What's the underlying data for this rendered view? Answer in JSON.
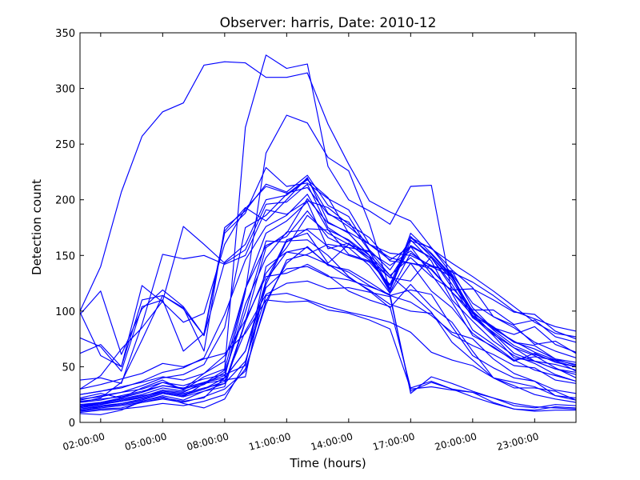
{
  "chart_data": {
    "type": "line",
    "title": "Observer: harris, Date: 2010-12",
    "xlabel": "Time (hours)",
    "ylabel": "Detection count",
    "x_ticks": [
      "02:00:00",
      "05:00:00",
      "08:00:00",
      "11:00:00",
      "14:00:00",
      "17:00:00",
      "20:00:00",
      "23:00:00"
    ],
    "y_ticks": [
      0,
      50,
      100,
      150,
      200,
      250,
      300,
      350
    ],
    "xlim_hours": [
      1,
      25
    ],
    "ylim": [
      0,
      350
    ],
    "grid": false,
    "line_color": "#0000ff",
    "x_hours": [
      1,
      2,
      3,
      4,
      5,
      6,
      7,
      8,
      9,
      10,
      11,
      12,
      13,
      14,
      15,
      16,
      17,
      18,
      19,
      20,
      21,
      22,
      23,
      24,
      25
    ],
    "series": [
      {
        "values": [
          100,
          140,
          207,
          257,
          279,
          287,
          321,
          324,
          323,
          310,
          310,
          314,
          268,
          232,
          199,
          189,
          181,
          157,
          137,
          121,
          95,
          87,
          70,
          73,
          62
        ]
      },
      {
        "values": [
          22,
          26,
          22,
          31,
          38,
          29,
          41,
          48,
          265,
          330,
          318,
          322,
          230,
          200,
          190,
          178,
          212,
          213,
          116,
          83,
          70,
          56,
          59,
          56,
          46
        ]
      },
      {
        "values": [
          15,
          18,
          21,
          24,
          27,
          25,
          30,
          40,
          117,
          242,
          276,
          269,
          238,
          226,
          179,
          119,
          170,
          152,
          132,
          98,
          86,
          72,
          66,
          57,
          54
        ]
      },
      {
        "values": [
          97,
          118,
          61,
          102,
          119,
          104,
          78,
          170,
          188,
          229,
          212,
          215,
          201,
          191,
          160,
          146,
          158,
          133,
          108,
          78,
          68,
          55,
          62,
          54,
          50
        ]
      },
      {
        "values": [
          62,
          70,
          50,
          110,
          114,
          103,
          64,
          175,
          190,
          214,
          207,
          222,
          195,
          185,
          155,
          137,
          164,
          145,
          110,
          91,
          73,
          60,
          53,
          43,
          37
        ]
      },
      {
        "values": [
          76,
          68,
          46,
          104,
          110,
          64,
          80,
          172,
          193,
          181,
          200,
          220,
          180,
          170,
          150,
          120,
          166,
          151,
          131,
          95,
          78,
          58,
          55,
          52,
          47
        ]
      },
      {
        "values": [
          99,
          60,
          50,
          123,
          108,
          90,
          98,
          160,
          192,
          212,
          206,
          211,
          187,
          180,
          154,
          120,
          167,
          149,
          128,
          96,
          80,
          62,
          55,
          48,
          43
        ]
      },
      {
        "values": [
          30,
          42,
          66,
          85,
          109,
          176,
          160,
          143,
          155,
          196,
          198,
          214,
          175,
          163,
          148,
          130,
          159,
          148,
          124,
          94,
          81,
          67,
          60,
          49,
          40
        ]
      },
      {
        "values": [
          18,
          22,
          36,
          74,
          114,
          102,
          78,
          144,
          160,
          200,
          204,
          218,
          202,
          170,
          150,
          117,
          152,
          140,
          131,
          98,
          79,
          67,
          55,
          48,
          45
        ]
      },
      {
        "values": [
          38,
          40,
          35,
          88,
          151,
          147,
          150,
          142,
          150,
          191,
          187,
          199,
          193,
          178,
          166,
          145,
          143,
          140,
          136,
          103,
          84,
          73,
          63,
          56,
          52
        ]
      },
      {
        "values": [
          20,
          24,
          27,
          33,
          40,
          43,
          52,
          85,
          175,
          186,
          205,
          219,
          188,
          176,
          160,
          152,
          150,
          141,
          135,
          126,
          114,
          100,
          93,
          86,
          82
        ]
      },
      {
        "values": [
          25,
          28,
          31,
          37,
          45,
          49,
          58,
          97,
          146,
          176,
          186,
          205,
          173,
          164,
          150,
          132,
          148,
          131,
          119,
          120,
          110,
          99,
          97,
          82,
          75
        ]
      },
      {
        "values": [
          16,
          18,
          22,
          27,
          36,
          30,
          44,
          55,
          120,
          170,
          181,
          198,
          156,
          161,
          146,
          123,
          158,
          148,
          121,
          101,
          101,
          88,
          92,
          77,
          72
        ]
      },
      {
        "values": [
          12,
          15,
          17,
          21,
          26,
          23,
          35,
          47,
          120,
          159,
          167,
          190,
          166,
          157,
          141,
          116,
          143,
          138,
          117,
          96,
          85,
          79,
          86,
          70,
          63
        ]
      },
      {
        "values": [
          13,
          16,
          19,
          23,
          29,
          27,
          36,
          42,
          106,
          148,
          171,
          173,
          158,
          150,
          144,
          124,
          166,
          156,
          143,
          131,
          118,
          104,
          90,
          80,
          77
        ]
      },
      {
        "values": [
          10,
          14,
          16,
          19,
          24,
          20,
          28,
          32,
          90,
          134,
          157,
          186,
          170,
          160,
          153,
          141,
          154,
          137,
          117,
          99,
          85,
          72,
          69,
          57,
          51
        ]
      },
      {
        "values": [
          10,
          12,
          13,
          18,
          22,
          19,
          22,
          40,
          64,
          127,
          164,
          170,
          143,
          160,
          148,
          119,
          163,
          157,
          133,
          107,
          95,
          85,
          72,
          64,
          58
        ]
      },
      {
        "values": [
          15,
          17,
          21,
          25,
          31,
          28,
          34,
          45,
          99,
          163,
          162,
          174,
          173,
          151,
          145,
          130,
          127,
          149,
          130,
          100,
          83,
          69,
          61,
          55,
          50
        ]
      },
      {
        "values": [
          21,
          23,
          27,
          30,
          36,
          33,
          39,
          43,
          51,
          140,
          153,
          150,
          142,
          135,
          123,
          114,
          108,
          96,
          81,
          75,
          57,
          44,
          37,
          24,
          22
        ]
      },
      {
        "values": [
          14,
          17,
          19,
          22,
          27,
          24,
          30,
          37,
          82,
          115,
          125,
          127,
          120,
          121,
          117,
          113,
          28,
          36,
          30,
          27,
          18,
          12,
          11,
          14,
          13
        ]
      },
      {
        "values": [
          18,
          20,
          24,
          28,
          33,
          31,
          36,
          40,
          64,
          121,
          138,
          140,
          131,
          128,
          122,
          115,
          26,
          41,
          35,
          28,
          22,
          15,
          13,
          16,
          15
        ]
      },
      {
        "values": [
          25,
          28,
          32,
          36,
          41,
          38,
          44,
          60,
          92,
          131,
          134,
          142,
          132,
          118,
          110,
          104,
          31,
          37,
          30,
          23,
          17,
          12,
          10,
          11,
          11
        ]
      },
      {
        "values": [
          30,
          34,
          39,
          44,
          53,
          50,
          57,
          62,
          80,
          110,
          108,
          109,
          101,
          98,
          92,
          84,
          30,
          32,
          29,
          27,
          22,
          17,
          14,
          13,
          12
        ]
      },
      {
        "values": [
          14,
          16,
          20,
          23,
          28,
          26,
          31,
          35,
          55,
          114,
          116,
          110,
          104,
          99,
          95,
          90,
          81,
          63,
          56,
          51,
          40,
          33,
          25,
          21,
          18
        ]
      },
      {
        "values": [
          9,
          11,
          12,
          14,
          17,
          15,
          19,
          25,
          48,
          106,
          146,
          151,
          160,
          157,
          154,
          132,
          116,
          99,
          72,
          56,
          40,
          36,
          32,
          24,
          20
        ]
      },
      {
        "values": [
          8,
          7,
          11,
          19,
          23,
          17,
          13,
          21,
          53,
          124,
          163,
          164,
          150,
          131,
          118,
          103,
          124,
          104,
          90,
          64,
          40,
          31,
          31,
          28,
          20
        ]
      },
      {
        "values": [
          11,
          13,
          15,
          18,
          21,
          18,
          23,
          30,
          46,
          109,
          143,
          158,
          141,
          137,
          126,
          114,
          119,
          115,
          86,
          60,
          49,
          40,
          37,
          29,
          26
        ]
      },
      {
        "values": [
          19,
          21,
          23,
          27,
          33,
          30,
          35,
          38,
          41,
          128,
          153,
          157,
          142,
          130,
          119,
          106,
          100,
          98,
          79,
          69,
          61,
          51,
          49,
          38,
          35
        ]
      },
      {
        "values": [
          12,
          14,
          17,
          20,
          26,
          23,
          28,
          35,
          91,
          157,
          170,
          201,
          179,
          171,
          160,
          148,
          143,
          118,
          103,
          80,
          67,
          56,
          47,
          42,
          37
        ]
      }
    ]
  }
}
